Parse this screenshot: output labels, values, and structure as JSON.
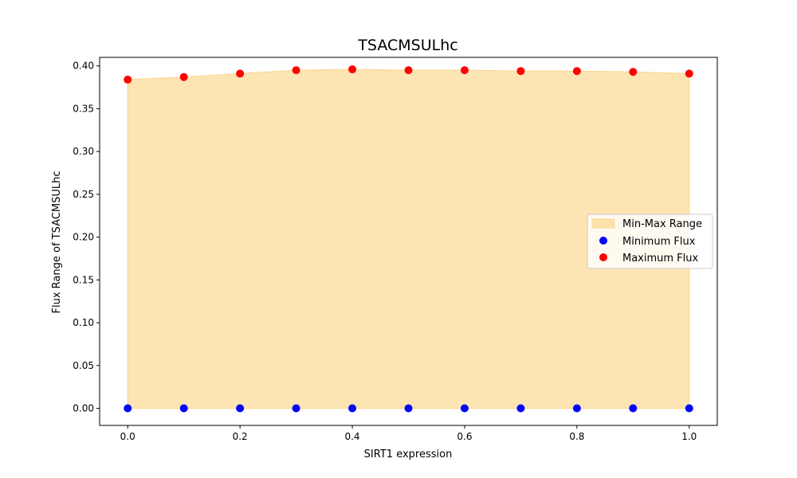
{
  "chart_data": {
    "type": "scatter",
    "title": "TSACMSULhc",
    "xlabel": "SIRT1 expression",
    "ylabel": "Flux Range of TSACMSULhc",
    "xlim": [
      -0.05,
      1.05
    ],
    "ylim": [
      -0.02,
      0.41
    ],
    "xticks": [
      "0.0",
      "0.2",
      "0.4",
      "0.6",
      "0.8",
      "1.0"
    ],
    "yticks": [
      "0.00",
      "0.05",
      "0.10",
      "0.15",
      "0.20",
      "0.25",
      "0.30",
      "0.35",
      "0.40"
    ],
    "x": [
      0.0,
      0.1,
      0.2,
      0.3,
      0.4,
      0.5,
      0.6,
      0.7,
      0.8,
      0.9,
      1.0
    ],
    "series": [
      {
        "name": "Min-Max Range",
        "kind": "area",
        "color": "#fcd58b",
        "lower": [
          0,
          0,
          0,
          0,
          0,
          0,
          0,
          0,
          0,
          0,
          0
        ],
        "upper": [
          0.384,
          0.387,
          0.391,
          0.395,
          0.396,
          0.395,
          0.395,
          0.394,
          0.394,
          0.393,
          0.391
        ]
      },
      {
        "name": "Minimum Flux",
        "kind": "points",
        "color": "#0000ff",
        "values": [
          0,
          0,
          0,
          0,
          0,
          0,
          0,
          0,
          0,
          0,
          0
        ]
      },
      {
        "name": "Maximum Flux",
        "kind": "points",
        "color": "#ff0000",
        "values": [
          0.384,
          0.387,
          0.391,
          0.395,
          0.396,
          0.395,
          0.395,
          0.394,
          0.394,
          0.393,
          0.391
        ]
      }
    ],
    "legend_position": "center-right",
    "grid": false
  }
}
